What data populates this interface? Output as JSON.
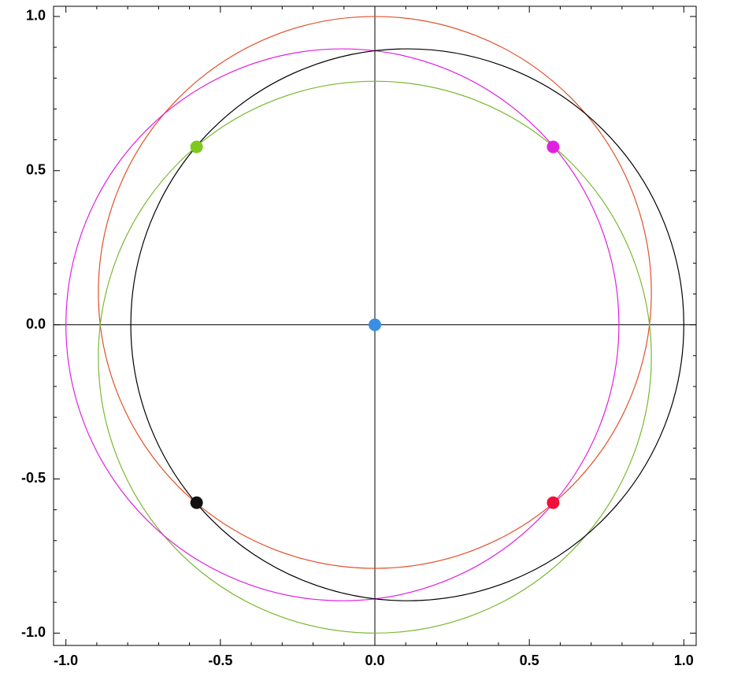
{
  "chart_data": {
    "type": "scatter",
    "xlim": [
      -1.04,
      1.04
    ],
    "ylim": [
      -1.04,
      1.033
    ],
    "xticks": [
      {
        "value": -1,
        "label": "-1.0"
      },
      {
        "value": -0.5,
        "label": "-0.5"
      },
      {
        "value": 0,
        "label": "0.0"
      },
      {
        "value": 0.5,
        "label": "0.5"
      },
      {
        "value": 1,
        "label": "1.0"
      }
    ],
    "yticks": [
      {
        "value": -1,
        "label": "-1.0"
      },
      {
        "value": -0.5,
        "label": "-0.5"
      },
      {
        "value": 0,
        "label": "0.0"
      },
      {
        "value": 0.5,
        "label": "0.5"
      },
      {
        "value": 1,
        "label": "1.0"
      }
    ],
    "xminorticks": [
      -0.9,
      -0.8,
      -0.7,
      -0.6,
      -0.4,
      -0.3,
      -0.2,
      -0.1,
      0.1,
      0.2,
      0.3,
      0.4,
      0.6,
      0.7,
      0.8,
      0.9
    ],
    "yminorticks": [
      -0.9,
      -0.8,
      -0.7,
      -0.6,
      -0.4,
      -0.3,
      -0.2,
      -0.1,
      0.1,
      0.2,
      0.3,
      0.4,
      0.6,
      0.7,
      0.8,
      0.9
    ],
    "axes_lines": true,
    "circles": [
      {
        "color": "#e0502a",
        "cx": 0,
        "cy": 0.105,
        "r": 0.895
      },
      {
        "color": "#7ab830",
        "cx": 0,
        "cy": -0.105,
        "r": 0.895
      },
      {
        "color": "#e020e0",
        "cx": -0.105,
        "cy": 0,
        "r": 0.895
      },
      {
        "color": "#000000",
        "cx": 0.105,
        "cy": 0,
        "r": 0.895
      }
    ],
    "points": {
      "x": [
        0,
        -0.577,
        0.577,
        -0.577,
        0.577
      ],
      "y": [
        0,
        0.577,
        0.577,
        -0.577,
        -0.577
      ],
      "colors": [
        "#3a8ee6",
        "#7ec820",
        "#e020e0",
        "#111111",
        "#f0103a"
      ]
    }
  }
}
